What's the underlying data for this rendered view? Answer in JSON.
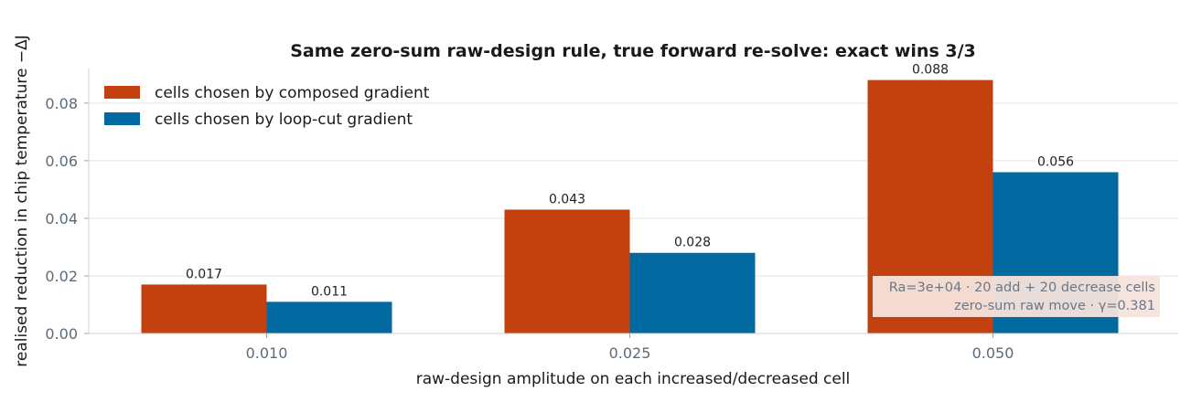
{
  "chart_data": {
    "type": "bar",
    "title": "Same zero-sum raw-design rule, true forward re-solve: exact wins 3/3",
    "xlabel": "raw-design amplitude on each increased/decreased cell",
    "ylabel": "realised reduction in chip temperature  −ΔJ",
    "categories": [
      "0.010",
      "0.025",
      "0.050"
    ],
    "series": [
      {
        "name": "cells chosen by composed gradient",
        "values": [
          0.017,
          0.043,
          0.088
        ],
        "labels": [
          "0.017",
          "0.043",
          "0.088"
        ],
        "color": "#c2410e"
      },
      {
        "name": "cells chosen by loop-cut gradient",
        "values": [
          0.011,
          0.028,
          0.056
        ],
        "labels": [
          "0.011",
          "0.028",
          "0.056"
        ],
        "color": "#0369a1"
      }
    ],
    "ylim": [
      0,
      0.092
    ],
    "yticks": [
      0.0,
      0.02,
      0.04,
      0.06,
      0.08
    ],
    "ytick_labels": [
      "0.00",
      "0.02",
      "0.04",
      "0.06",
      "0.08"
    ],
    "grid": "horizontal",
    "legend_position": "top-left",
    "annotation": {
      "lines": [
        "Ra=3e+04 · 20 add + 20 decrease cells",
        "zero-sum raw move · γ=0.381"
      ],
      "position": "lower-right"
    }
  }
}
